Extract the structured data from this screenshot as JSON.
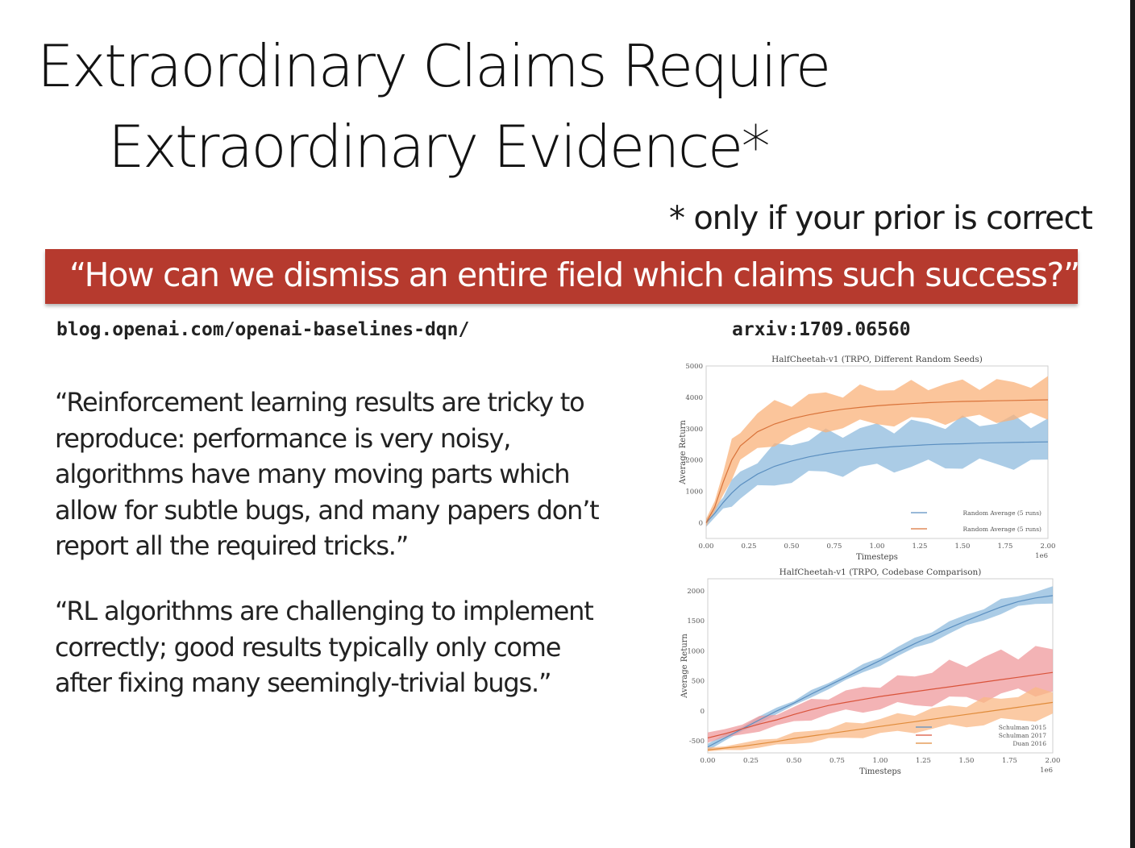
{
  "slide": {
    "title_line1": "Extraordinary Claims Require",
    "title_line2": "Extraordinary Evidence*",
    "footnote": "* only if your prior is correct",
    "banner": "“How can we dismiss an entire field which claims such success?”",
    "banner_color": "#b63a2e",
    "link_left": "blog.openai.com/openai-baselines-dqn/",
    "link_right": "arxiv:1709.06560",
    "quote1_lines": [
      "“Reinforcement learning results are tricky to",
      "reproduce: performance is very noisy,",
      "algorithms have many moving parts which",
      "allow for subtle bugs, and many papers don’t",
      "report all the required tricks.”"
    ],
    "quote2_lines": [
      "“RL algorithms are challenging to implement",
      "correctly; good results typically only come",
      "after fixing many seemingly-trivial bugs.”"
    ]
  },
  "chart_data": [
    {
      "type": "line",
      "title": "HalfCheetah-v1 (TRPO, Different Random Seeds)",
      "xlabel": "Timesteps",
      "x_scale_note": "1e6",
      "ylabel": "Average Return",
      "xlim": [
        0,
        2
      ],
      "ylim": [
        -500,
        5000
      ],
      "x_ticks": [
        "0.00",
        "0.25",
        "0.50",
        "0.75",
        "1.00",
        "1.25",
        "1.50",
        "1.75",
        "2.00"
      ],
      "y_ticks": [
        0,
        1000,
        2000,
        3000,
        4000,
        5000
      ],
      "legend_position": "lower right",
      "x": [
        0,
        0.05,
        0.1,
        0.15,
        0.2,
        0.3,
        0.4,
        0.5,
        0.6,
        0.7,
        0.8,
        0.9,
        1.0,
        1.1,
        1.2,
        1.3,
        1.4,
        1.5,
        1.6,
        1.7,
        1.8,
        1.9,
        2.0
      ],
      "series": [
        {
          "name": "Random Average (5 runs)",
          "color": "#5b8fc0",
          "band_color": "#8fbbde",
          "values": [
            0,
            300,
            650,
            950,
            1200,
            1550,
            1800,
            1970,
            2100,
            2200,
            2280,
            2340,
            2390,
            2430,
            2460,
            2490,
            2510,
            2520,
            2540,
            2550,
            2560,
            2570,
            2580
          ],
          "band": [
            [
              -100,
              100
            ],
            [
              150,
              450
            ],
            [
              400,
              900
            ],
            [
              600,
              1300
            ],
            [
              800,
              1600
            ],
            [
              1050,
              2050
            ],
            [
              1250,
              2350
            ],
            [
              1400,
              2550
            ],
            [
              1500,
              2700
            ],
            [
              1600,
              2800
            ],
            [
              1650,
              2900
            ],
            [
              1700,
              2980
            ],
            [
              1750,
              3030
            ],
            [
              1780,
              3080
            ],
            [
              1800,
              3120
            ],
            [
              1820,
              3160
            ],
            [
              1840,
              3180
            ],
            [
              1850,
              3190
            ],
            [
              1860,
              3210
            ],
            [
              1870,
              3220
            ],
            [
              1880,
              3230
            ],
            [
              1890,
              3240
            ],
            [
              1900,
              3250
            ]
          ]
        },
        {
          "name": "Random Average (5 runs)",
          "color": "#d9733a",
          "band_color": "#f9b27a",
          "values": [
            0,
            500,
            1300,
            2000,
            2450,
            2900,
            3150,
            3320,
            3440,
            3540,
            3620,
            3680,
            3730,
            3770,
            3800,
            3830,
            3850,
            3870,
            3880,
            3890,
            3900,
            3910,
            3920
          ],
          "band": [
            [
              -100,
              100
            ],
            [
              300,
              700
            ],
            [
              900,
              1700
            ],
            [
              1500,
              2500
            ],
            [
              1900,
              3000
            ],
            [
              2300,
              3500
            ],
            [
              2600,
              3750
            ],
            [
              2750,
              3900
            ],
            [
              2900,
              4000
            ],
            [
              3000,
              4100
            ],
            [
              3080,
              4170
            ],
            [
              3130,
              4230
            ],
            [
              3180,
              4280
            ],
            [
              3210,
              4320
            ],
            [
              3240,
              4360
            ],
            [
              3270,
              4390
            ],
            [
              3290,
              4410
            ],
            [
              3300,
              4430
            ],
            [
              3310,
              4440
            ],
            [
              3320,
              4450
            ],
            [
              3330,
              4460
            ],
            [
              3340,
              4470
            ],
            [
              3350,
              4480
            ]
          ]
        }
      ]
    },
    {
      "type": "line",
      "title": "HalfCheetah-v1 (TRPO, Codebase Comparison)",
      "xlabel": "Timesteps",
      "x_scale_note": "1e6",
      "ylabel": "Average Return",
      "xlim": [
        0,
        2
      ],
      "ylim": [
        -700,
        2200
      ],
      "x_ticks": [
        "0.00",
        "0.25",
        "0.50",
        "0.75",
        "1.00",
        "1.25",
        "1.50",
        "1.75",
        "2.00"
      ],
      "y_ticks": [
        -500,
        0,
        500,
        1000,
        1500,
        2000
      ],
      "legend_position": "lower right",
      "x": [
        0,
        0.1,
        0.2,
        0.3,
        0.4,
        0.5,
        0.6,
        0.7,
        0.8,
        0.9,
        1.0,
        1.1,
        1.2,
        1.3,
        1.4,
        1.5,
        1.6,
        1.7,
        1.8,
        1.9,
        2.0
      ],
      "series": [
        {
          "name": "Schulman 2015",
          "color": "#5b8fc0",
          "band_color": "#8fbbde",
          "values": [
            -600,
            -450,
            -300,
            -150,
            0,
            130,
            280,
            420,
            560,
            700,
            840,
            980,
            1120,
            1250,
            1380,
            1500,
            1620,
            1730,
            1820,
            1880,
            1920
          ],
          "band": [
            [
              -650,
              -550
            ],
            [
              -500,
              -400
            ],
            [
              -350,
              -250
            ],
            [
              -200,
              -100
            ],
            [
              -50,
              50
            ],
            [
              80,
              180
            ],
            [
              230,
              330
            ],
            [
              370,
              470
            ],
            [
              500,
              620
            ],
            [
              640,
              760
            ],
            [
              770,
              910
            ],
            [
              900,
              1060
            ],
            [
              1040,
              1200
            ],
            [
              1160,
              1340
            ],
            [
              1290,
              1470
            ],
            [
              1400,
              1600
            ],
            [
              1520,
              1720
            ],
            [
              1630,
              1830
            ],
            [
              1720,
              1930
            ],
            [
              1780,
              1990
            ],
            [
              1820,
              2040
            ]
          ]
        },
        {
          "name": "Schulman 2017",
          "color": "#d9533a",
          "band_color": "#ef9a9c",
          "values": [
            -450,
            -380,
            -300,
            -220,
            -150,
            -60,
            20,
            90,
            140,
            190,
            240,
            280,
            320,
            360,
            400,
            440,
            480,
            520,
            560,
            600,
            640
          ],
          "band": [
            [
              -520,
              -380
            ],
            [
              -460,
              -300
            ],
            [
              -390,
              -210
            ],
            [
              -320,
              -120
            ],
            [
              -260,
              -40
            ],
            [
              -190,
              70
            ],
            [
              -120,
              160
            ],
            [
              -60,
              240
            ],
            [
              -20,
              310
            ],
            [
              10,
              380
            ],
            [
              50,
              450
            ],
            [
              80,
              520
            ],
            [
              110,
              600
            ],
            [
              140,
              680
            ],
            [
              170,
              750
            ],
            [
              200,
              820
            ],
            [
              230,
              880
            ],
            [
              260,
              940
            ],
            [
              290,
              980
            ],
            [
              320,
              1000
            ],
            [
              350,
              1010
            ]
          ]
        },
        {
          "name": "Duan 2016",
          "color": "#e08b3a",
          "band_color": "#f9b886",
          "values": [
            -650,
            -620,
            -590,
            -550,
            -510,
            -460,
            -420,
            -380,
            -340,
            -300,
            -260,
            -220,
            -180,
            -140,
            -100,
            -60,
            -20,
            20,
            60,
            100,
            140
          ],
          "band": [
            [
              -680,
              -620
            ],
            [
              -660,
              -580
            ],
            [
              -640,
              -540
            ],
            [
              -610,
              -490
            ],
            [
              -580,
              -440
            ],
            [
              -540,
              -380
            ],
            [
              -510,
              -330
            ],
            [
              -480,
              -280
            ],
            [
              -450,
              -230
            ],
            [
              -420,
              -180
            ],
            [
              -390,
              -130
            ],
            [
              -360,
              -80
            ],
            [
              -330,
              -30
            ],
            [
              -300,
              20
            ],
            [
              -270,
              70
            ],
            [
              -240,
              120
            ],
            [
              -210,
              170
            ],
            [
              -180,
              220
            ],
            [
              -150,
              270
            ],
            [
              -120,
              320
            ],
            [
              -90,
              370
            ]
          ]
        }
      ]
    }
  ]
}
